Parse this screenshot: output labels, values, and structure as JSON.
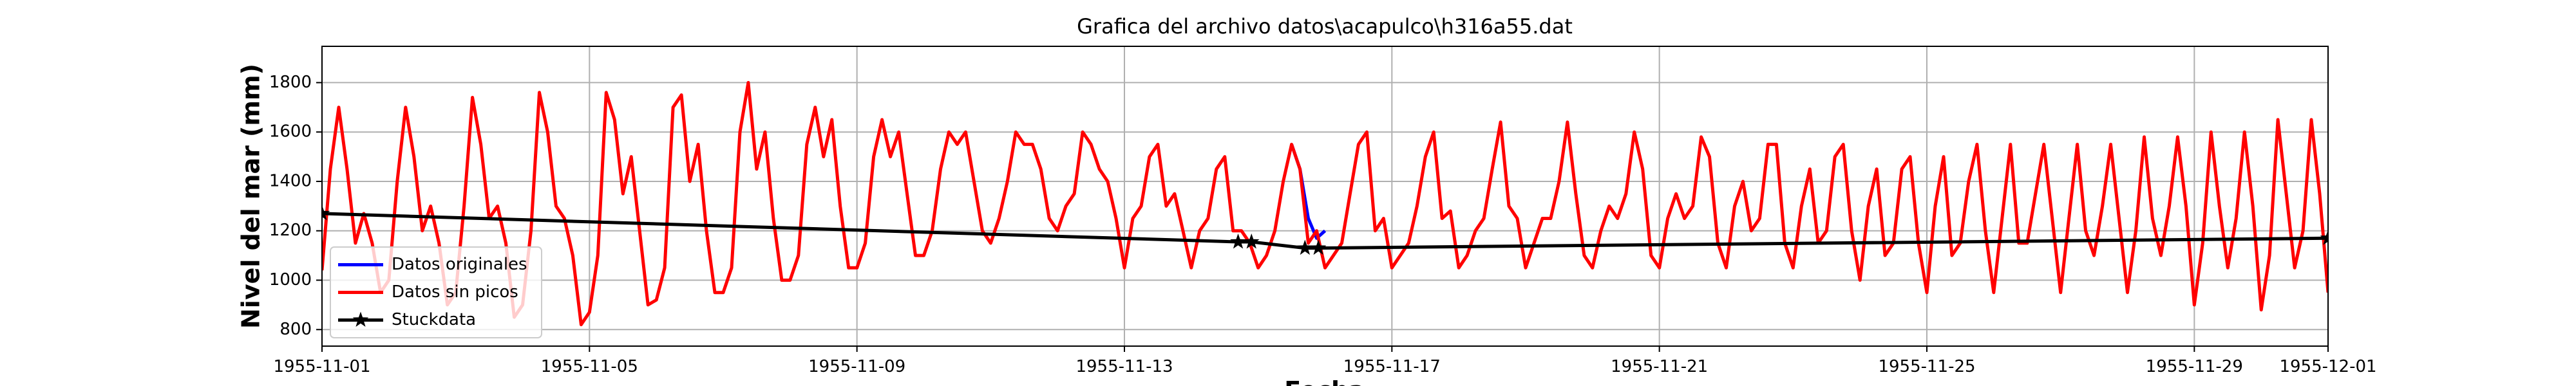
{
  "chart_data": {
    "type": "line",
    "title": "Grafica del archivo datos\\acapulco\\h316a55.dat",
    "ylabel": "Nivel del mar (mm)",
    "xlabel": "Fecha",
    "xlim": [
      0,
      30
    ],
    "ylim": [
      733,
      1947
    ],
    "xticks": [
      {
        "value": 0,
        "label": "1955-11-01"
      },
      {
        "value": 4,
        "label": "1955-11-05"
      },
      {
        "value": 8,
        "label": "1955-11-09"
      },
      {
        "value": 12,
        "label": "1955-11-13"
      },
      {
        "value": 16,
        "label": "1955-11-17"
      },
      {
        "value": 20,
        "label": "1955-11-21"
      },
      {
        "value": 24,
        "label": "1955-11-25"
      },
      {
        "value": 28,
        "label": "1955-11-29"
      },
      {
        "value": 30,
        "label": "1955-12-01"
      }
    ],
    "yticks": [
      800,
      1000,
      1200,
      1400,
      1600,
      1800
    ],
    "grid": true,
    "legend": "lower left",
    "x": [
      0,
      0.125,
      0.25,
      0.375,
      0.5,
      0.625,
      0.75,
      0.875,
      1,
      1.125,
      1.25,
      1.375,
      1.5,
      1.625,
      1.75,
      1.875,
      2,
      2.125,
      2.25,
      2.375,
      2.5,
      2.625,
      2.75,
      2.875,
      3,
      3.125,
      3.25,
      3.375,
      3.5,
      3.625,
      3.75,
      3.875,
      4,
      4.125,
      4.25,
      4.375,
      4.5,
      4.625,
      4.75,
      4.875,
      5,
      5.125,
      5.25,
      5.375,
      5.5,
      5.625,
      5.75,
      5.875,
      6,
      6.125,
      6.25,
      6.375,
      6.5,
      6.625,
      6.75,
      6.875,
      7,
      7.125,
      7.25,
      7.375,
      7.5,
      7.625,
      7.75,
      7.875,
      8,
      8.125,
      8.25,
      8.375,
      8.5,
      8.625,
      8.75,
      8.875,
      9,
      9.125,
      9.25,
      9.375,
      9.5,
      9.625,
      9.75,
      9.875,
      10,
      10.125,
      10.25,
      10.375,
      10.5,
      10.625,
      10.75,
      10.875,
      11,
      11.125,
      11.25,
      11.375,
      11.5,
      11.625,
      11.75,
      11.875,
      12,
      12.125,
      12.25,
      12.375,
      12.5,
      12.625,
      12.75,
      12.875,
      13,
      13.125,
      13.25,
      13.375,
      13.5,
      13.625,
      13.75,
      13.875,
      14,
      14.125,
      14.25,
      14.375,
      14.5,
      14.625,
      14.75,
      14.875,
      15,
      15.125,
      15.25,
      15.375,
      15.5,
      15.625,
      15.75,
      15.875,
      16,
      16.125,
      16.25,
      16.375,
      16.5,
      16.625,
      16.75,
      16.875,
      17,
      17.125,
      17.25,
      17.375,
      17.5,
      17.625,
      17.75,
      17.875,
      18,
      18.125,
      18.25,
      18.375,
      18.5,
      18.625,
      18.75,
      18.875,
      19,
      19.125,
      19.25,
      19.375,
      19.5,
      19.625,
      19.75,
      19.875,
      20,
      20.125,
      20.25,
      20.375,
      20.5,
      20.625,
      20.75,
      20.875,
      21,
      21.125,
      21.25,
      21.375,
      21.5,
      21.625,
      21.75,
      21.875,
      22,
      22.125,
      22.25,
      22.375,
      22.5,
      22.625,
      22.75,
      22.875,
      23,
      23.125,
      23.25,
      23.375,
      23.5,
      23.625,
      23.75,
      23.875,
      24,
      24.125,
      24.25,
      24.375,
      24.5,
      24.625,
      24.75,
      24.875,
      25,
      25.125,
      25.25,
      25.375,
      25.5,
      25.625,
      25.75,
      25.875,
      26,
      26.125,
      26.25,
      26.375,
      26.5,
      26.625,
      26.75,
      26.875,
      27,
      27.125,
      27.25,
      27.375,
      27.5,
      27.625,
      27.75,
      27.875,
      28,
      28.125,
      28.25,
      28.375,
      28.5,
      28.625,
      28.75,
      28.875,
      29,
      29.125,
      29.25,
      29.375,
      29.5,
      29.625,
      29.75,
      29.875,
      30
    ],
    "series": [
      {
        "name": "Datos originales",
        "color": "#0000ff",
        "x": [
          14.5,
          14.625,
          14.75,
          14.875,
          15
        ],
        "values": [
          1550,
          1450,
          1250,
          1170,
          1200
        ]
      },
      {
        "name": "Datos sin picos",
        "color": "#ff0000",
        "values": [
          1040,
          1450,
          1700,
          1450,
          1150,
          1270,
          1150,
          950,
          1000,
          1400,
          1700,
          1500,
          1200,
          1300,
          1150,
          900,
          950,
          1300,
          1740,
          1550,
          1250,
          1300,
          1150,
          850,
          900,
          1200,
          1760,
          1600,
          1300,
          1250,
          1100,
          820,
          870,
          1100,
          1760,
          1650,
          1350,
          1500,
          1200,
          900,
          920,
          1050,
          1700,
          1750,
          1400,
          1550,
          1200,
          950,
          950,
          1050,
          1600,
          1800,
          1450,
          1600,
          1250,
          1000,
          1000,
          1100,
          1550,
          1700,
          1500,
          1650,
          1300,
          1050,
          1050,
          1150,
          1500,
          1650,
          1500,
          1600,
          1350,
          1100,
          1100,
          1200,
          1450,
          1600,
          1550,
          1600,
          1400,
          1200,
          1150,
          1250,
          1400,
          1600,
          1550,
          1550,
          1450,
          1250,
          1200,
          1300,
          1350,
          1600,
          1550,
          1450,
          1400,
          1250,
          1050,
          1250,
          1300,
          1500,
          1550,
          1300,
          1350,
          1200,
          1050,
          1200,
          1250,
          1450,
          1500,
          1200,
          1200,
          1150,
          1050,
          1100,
          1200,
          1400,
          1550,
          1450,
          1150,
          1200,
          1050,
          1100,
          1150,
          1350,
          1550,
          1600,
          1200,
          1250,
          1050,
          1100,
          1150,
          1300,
          1500,
          1600,
          1250,
          1280,
          1050,
          1100,
          1200,
          1250,
          1450,
          1640,
          1300,
          1250,
          1050,
          1150,
          1250,
          1250,
          1400,
          1640,
          1350,
          1100,
          1050,
          1200,
          1300,
          1250,
          1350,
          1600,
          1450,
          1100,
          1050,
          1250,
          1350,
          1250,
          1300,
          1580,
          1500,
          1150,
          1050,
          1300,
          1400,
          1200,
          1250,
          1550,
          1550,
          1150,
          1050,
          1300,
          1450,
          1150,
          1200,
          1500,
          1550,
          1200,
          1000,
          1300,
          1450,
          1100,
          1150,
          1450,
          1500,
          1150,
          950,
          1300,
          1500,
          1100,
          1150,
          1400,
          1550,
          1200,
          950,
          1250,
          1550,
          1150,
          1150,
          1350,
          1550,
          1250,
          950,
          1250,
          1550,
          1200,
          1100,
          1300,
          1550,
          1250,
          950,
          1200,
          1580,
          1250,
          1100,
          1300,
          1580,
          1300,
          900,
          1150,
          1600,
          1300,
          1050,
          1250,
          1600,
          1300,
          880,
          1100,
          1650,
          1350,
          1050,
          1200,
          1650,
          1350,
          950
        ]
      },
      {
        "name": "Stuckdata",
        "color": "#000000",
        "marker": "star",
        "x": [
          0,
          13.7,
          13.9,
          14.7,
          14.9,
          30
        ],
        "values": [
          1270,
          1155,
          1155,
          1130,
          1130,
          1170
        ]
      }
    ]
  }
}
